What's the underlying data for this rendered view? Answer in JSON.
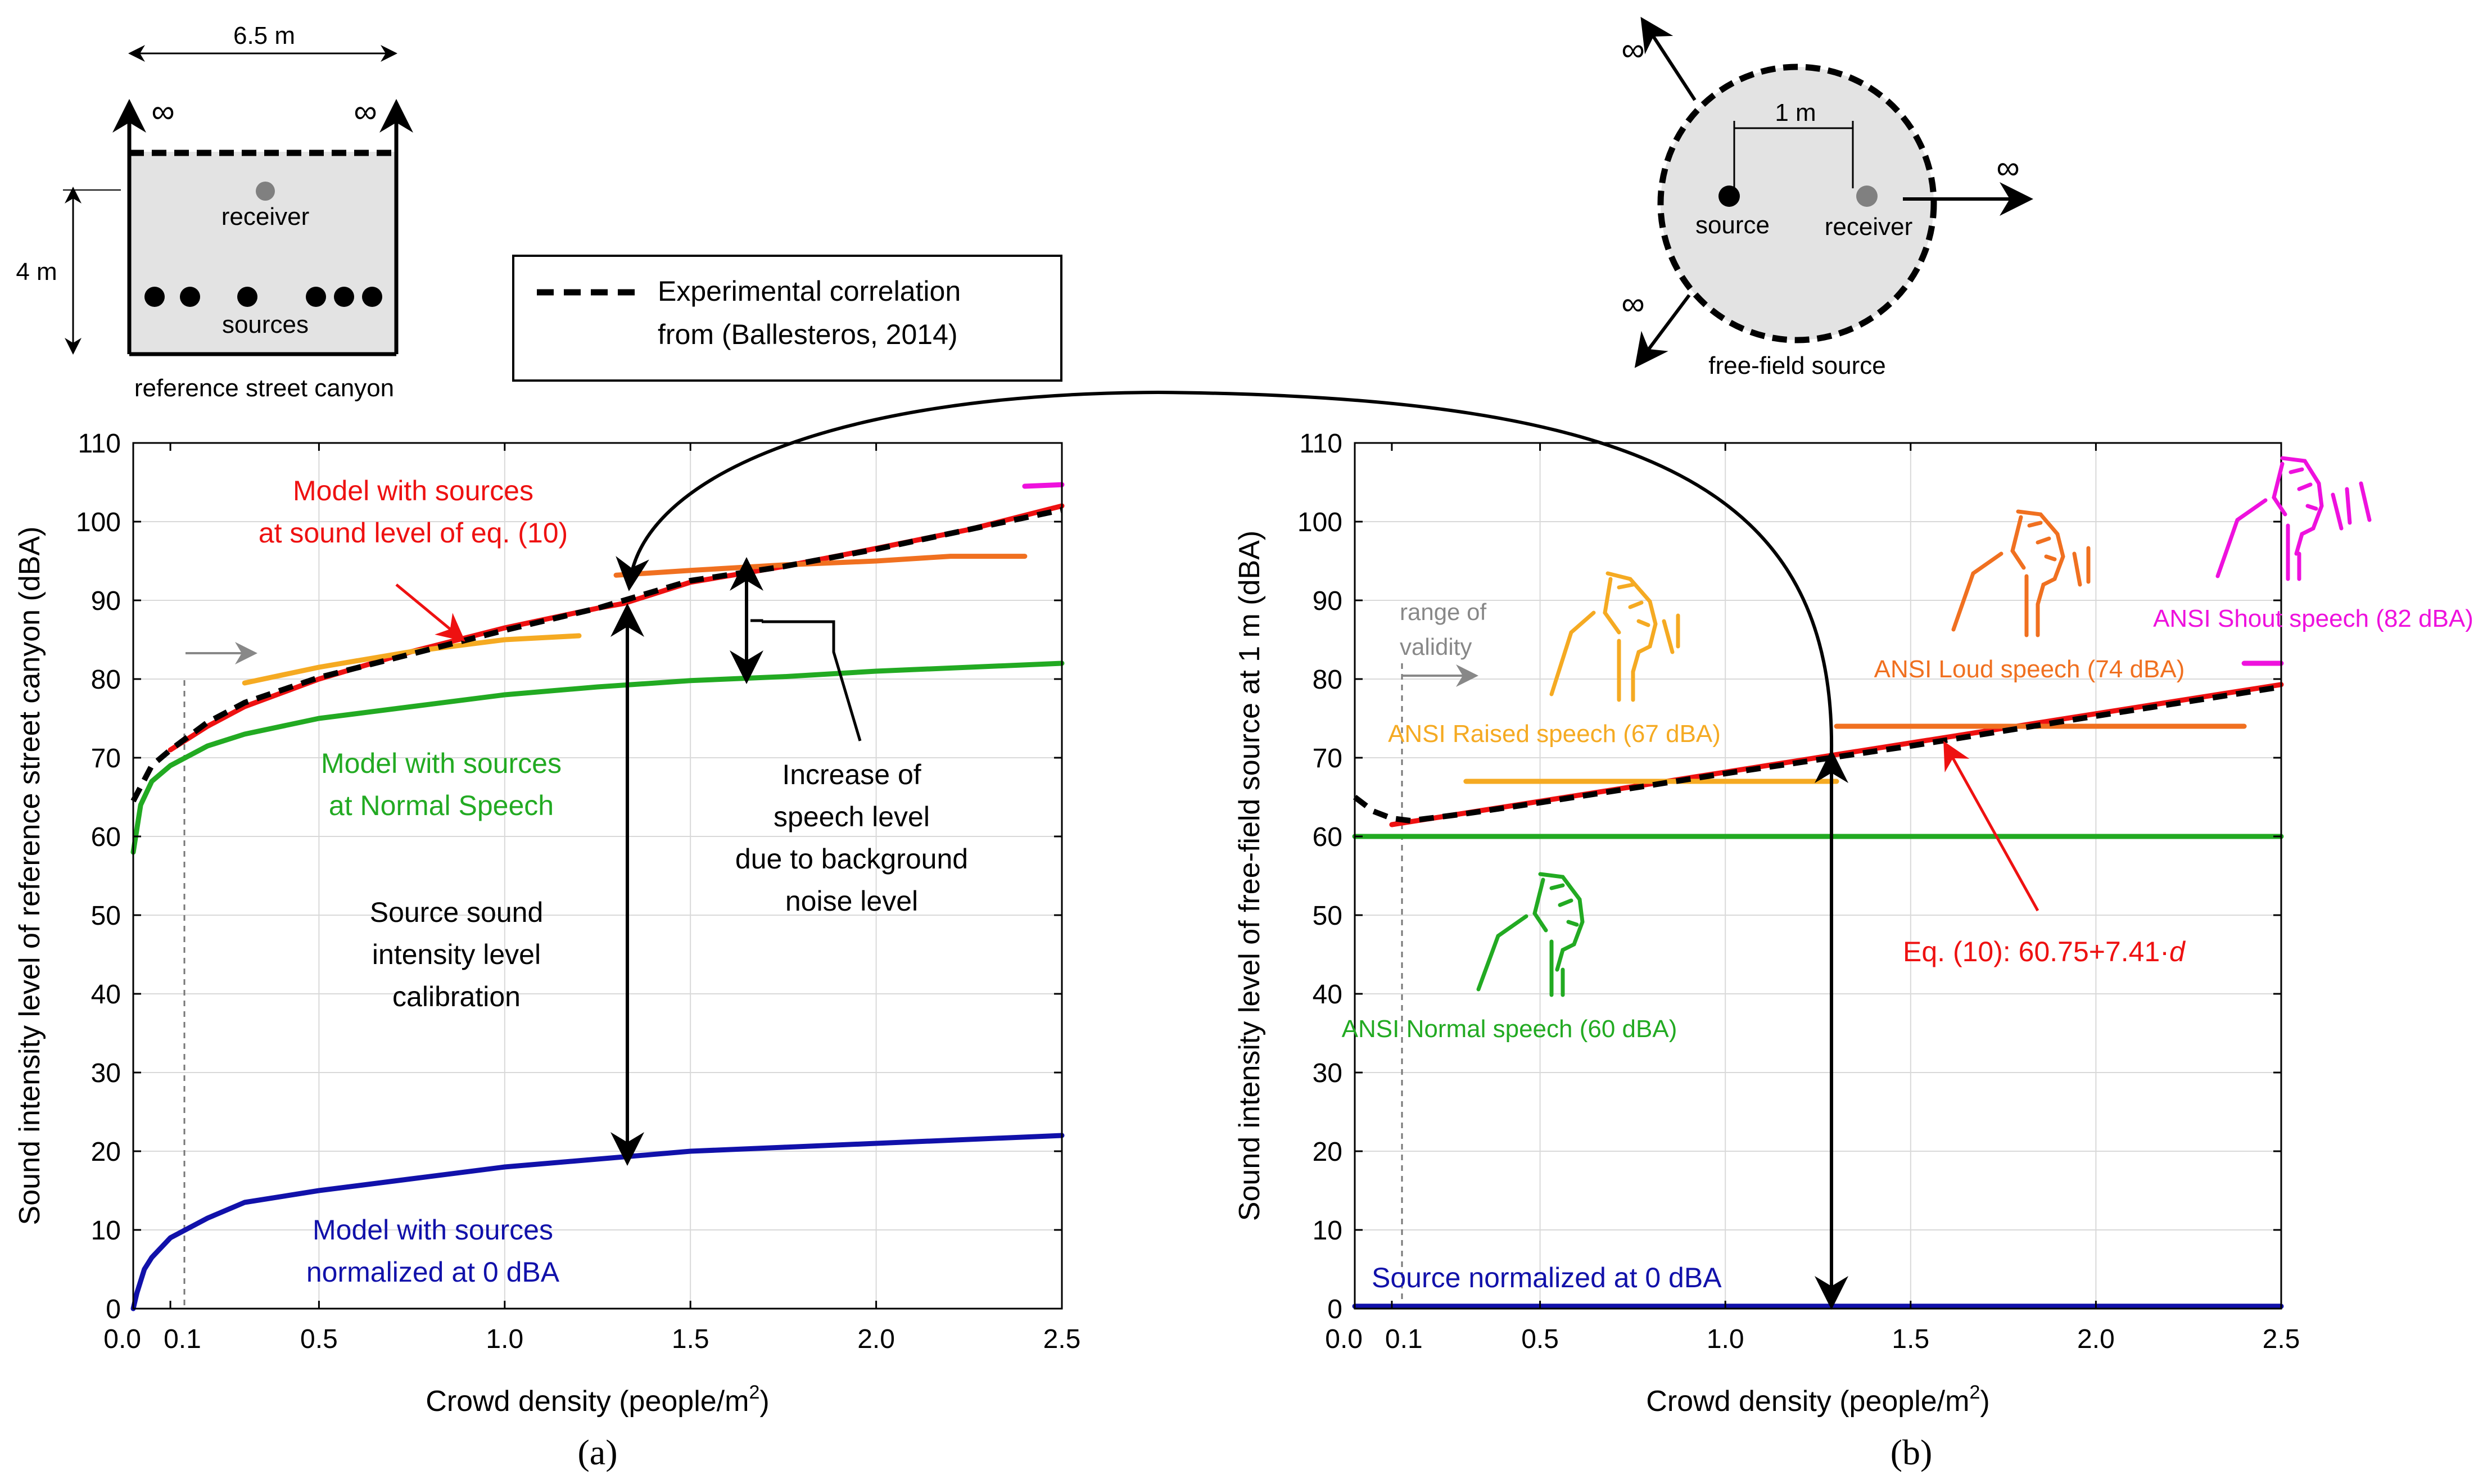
{
  "colors": {
    "red": "#ee1111",
    "orange": "#f07020",
    "yellow": "#f5aa22",
    "green": "#22aa22",
    "blue": "#1111aa",
    "magenta": "#ee11dd",
    "black": "#000000",
    "grid": "#d9d9d9",
    "gray": "#888888",
    "light_fill": "#e3e3e3"
  },
  "street_schematic": {
    "width_label": "6.5 m",
    "height_label": "4 m",
    "infinity_left": "∞",
    "infinity_right": "∞",
    "receiver_label": "receiver",
    "sources_label": "sources",
    "caption": "reference street canyon"
  },
  "free_field_schematic": {
    "distance_label": "1 m",
    "source_label": "source",
    "receiver_label": "receiver",
    "caption": "free-field source",
    "infinity_labels": [
      "∞",
      "∞",
      "∞"
    ]
  },
  "legend": {
    "line1": "Experimental correlation",
    "line2": "from (Ballesteros, 2014)"
  },
  "chart_data": [
    {
      "type": "line",
      "panel_label": "(a)",
      "xlabel": "Crowd density (people/m",
      "xlabel_sup": "2",
      "xlabel_end": ")",
      "ylabel": "Sound intensity level of reference street canyon (dBA)",
      "xlim": [
        0,
        2.5
      ],
      "ylim": [
        0,
        110
      ],
      "xticks": [
        0,
        0.1,
        0.5,
        1.0,
        1.5,
        2.0,
        2.5
      ],
      "xtick_labels": [
        "0.0",
        "0.1",
        "0.5",
        "1.0",
        "1.5",
        "2.0",
        "2.5"
      ],
      "yticks": [
        0,
        10,
        20,
        30,
        40,
        50,
        60,
        70,
        80,
        90,
        100,
        110
      ],
      "ytick_labels": [
        "0",
        "10",
        "20",
        "30",
        "40",
        "50",
        "60",
        "70",
        "80",
        "90",
        "100",
        "110"
      ],
      "grid": true,
      "series": [
        {
          "name": "Experimental correlation (Ballesteros, 2014)",
          "style": "dashed",
          "color": "black",
          "x": [
            0.0,
            0.05,
            0.1,
            0.2,
            0.3,
            0.5,
            0.75,
            1.0,
            1.25,
            1.5,
            1.75,
            2.0,
            2.25,
            2.5
          ],
          "y": [
            64.5,
            69.0,
            71.0,
            74.5,
            77.0,
            80.2,
            83.2,
            86.2,
            89.0,
            92.5,
            94.3,
            96.5,
            99.0,
            101.5
          ]
        },
        {
          "name": "Model with sources at sound level of eq. (10)",
          "style": "solid",
          "color": "red",
          "x": [
            0.1,
            0.2,
            0.3,
            0.5,
            0.75,
            1.0,
            1.25,
            1.32,
            1.5,
            1.75,
            2.0,
            2.25,
            2.5
          ],
          "y": [
            71.0,
            74.0,
            76.5,
            80.0,
            83.5,
            86.5,
            89.0,
            89.6,
            92.3,
            94.3,
            96.6,
            99.0,
            102.0
          ]
        },
        {
          "name": "Model with sources at Normal Speech",
          "style": "solid",
          "color": "green",
          "x": [
            0.0,
            0.02,
            0.05,
            0.1,
            0.2,
            0.3,
            0.5,
            0.75,
            1.0,
            1.25,
            1.5,
            1.75,
            2.0,
            2.25,
            2.5
          ],
          "y": [
            58.0,
            64.0,
            67.0,
            69.0,
            71.5,
            73.0,
            75.0,
            76.5,
            78.0,
            79.0,
            79.8,
            80.3,
            81.0,
            81.5,
            82.0
          ]
        },
        {
          "name": "Model with sources normalized at 0 dBA",
          "style": "solid",
          "color": "blue",
          "x": [
            0.0,
            0.01,
            0.03,
            0.05,
            0.1,
            0.2,
            0.3,
            0.5,
            0.75,
            1.0,
            1.25,
            1.5,
            1.75,
            2.0,
            2.25,
            2.5
          ],
          "y": [
            0.0,
            2.0,
            5.0,
            6.5,
            9.0,
            11.5,
            13.5,
            15.0,
            16.5,
            18.0,
            19.0,
            20.0,
            20.5,
            21.0,
            21.5,
            22.0
          ]
        },
        {
          "name": "Raised speech (67 dBA)",
          "style": "solid",
          "color": "yellow",
          "x": [
            0.3,
            0.5,
            0.75,
            1.0,
            1.2
          ],
          "y": [
            79.5,
            81.5,
            83.5,
            85.0,
            85.5
          ]
        },
        {
          "name": "Loud speech (74 dBA)",
          "style": "solid",
          "color": "orange",
          "x": [
            1.3,
            1.5,
            1.75,
            2.0,
            2.2,
            2.4
          ],
          "y": [
            93.2,
            93.8,
            94.5,
            95.0,
            95.6,
            95.6
          ]
        },
        {
          "name": "Shout speech (82 dBA)",
          "style": "solid",
          "color": "magenta",
          "x": [
            2.4,
            2.5
          ],
          "y": [
            104.5,
            104.7
          ]
        }
      ],
      "annotations": [
        {
          "text_lines": [
            "Model with sources",
            "at sound level of eq. (10)"
          ],
          "color": "red"
        },
        {
          "text_lines": [
            "Model with sources",
            "at Normal Speech"
          ],
          "color": "green"
        },
        {
          "text_lines": [
            "Model with sources",
            "normalized at 0 dBA"
          ],
          "color": "blue"
        },
        {
          "text_lines": [
            "Source sound",
            "intensity level",
            "calibration"
          ],
          "color": "black"
        },
        {
          "text_lines": [
            "Increase of",
            "speech level",
            "due to background",
            "noise level"
          ],
          "color": "black"
        }
      ]
    },
    {
      "type": "line",
      "panel_label": "(b)",
      "xlabel": "Crowd density (people/m",
      "xlabel_sup": "2",
      "xlabel_end": ")",
      "ylabel": "Sound intensity level of free-field source at 1 m (dBA)",
      "xlim": [
        0,
        2.5
      ],
      "ylim": [
        0,
        110
      ],
      "xticks": [
        0,
        0.1,
        0.5,
        1.0,
        1.5,
        2.0,
        2.5
      ],
      "xtick_labels": [
        "0.0",
        "0.1",
        "0.5",
        "1.0",
        "1.5",
        "2.0",
        "2.5"
      ],
      "yticks": [
        0,
        10,
        20,
        30,
        40,
        50,
        60,
        70,
        80,
        90,
        100,
        110
      ],
      "ytick_labels": [
        "0",
        "10",
        "20",
        "30",
        "40",
        "50",
        "60",
        "70",
        "80",
        "90",
        "100",
        "110"
      ],
      "grid": true,
      "series": [
        {
          "name": "Eq. (10): 60.75+7.41·d",
          "style": "solid",
          "color": "red",
          "x": [
            0.1,
            2.5
          ],
          "y": [
            61.5,
            79.3
          ]
        },
        {
          "name": "Experimental correlation",
          "style": "dashed",
          "color": "black",
          "x": [
            0.0,
            0.05,
            0.1,
            0.15,
            0.3,
            0.5,
            1.0,
            1.5,
            2.0,
            2.5
          ],
          "y": [
            65.0,
            63.2,
            62.3,
            62.0,
            62.9,
            64.3,
            68.0,
            71.5,
            75.3,
            79.0
          ]
        },
        {
          "name": "ANSI Raised speech (67 dBA)",
          "style": "solid",
          "color": "yellow",
          "x": [
            0.3,
            1.3
          ],
          "y": [
            67,
            67
          ]
        },
        {
          "name": "ANSI Loud speech (74 dBA)",
          "style": "solid",
          "color": "orange",
          "x": [
            1.3,
            2.4
          ],
          "y": [
            74,
            74
          ]
        },
        {
          "name": "ANSI Normal speech (60 dBA)",
          "style": "solid",
          "color": "green",
          "x": [
            0.0,
            2.5
          ],
          "y": [
            60,
            60
          ]
        },
        {
          "name": "ANSI Shout speech (82 dBA)",
          "style": "solid",
          "color": "magenta",
          "x": [
            2.4,
            2.5
          ],
          "y": [
            82,
            82
          ]
        },
        {
          "name": "Source normalized at 0 dBA",
          "style": "solid",
          "color": "blue",
          "x": [
            0.0,
            2.5
          ],
          "y": [
            0.3,
            0.3
          ]
        }
      ],
      "annotations": [
        {
          "text": "ANSI Raised speech (67 dBA)",
          "color": "yellow"
        },
        {
          "text": "ANSI Loud speech (74 dBA)",
          "color": "orange"
        },
        {
          "text": "ANSI Shout speech (82 dBA)",
          "color": "magenta"
        },
        {
          "text": "ANSI Normal speech (60 dBA)",
          "color": "green"
        },
        {
          "text": "Source normalized at 0 dBA",
          "color": "blue"
        },
        {
          "text_main": "Eq. (10): 60.75+7.41·",
          "text_var": "d",
          "color": "red"
        },
        {
          "text_lines": [
            "range of",
            "validity"
          ],
          "color": "gray"
        }
      ]
    }
  ]
}
